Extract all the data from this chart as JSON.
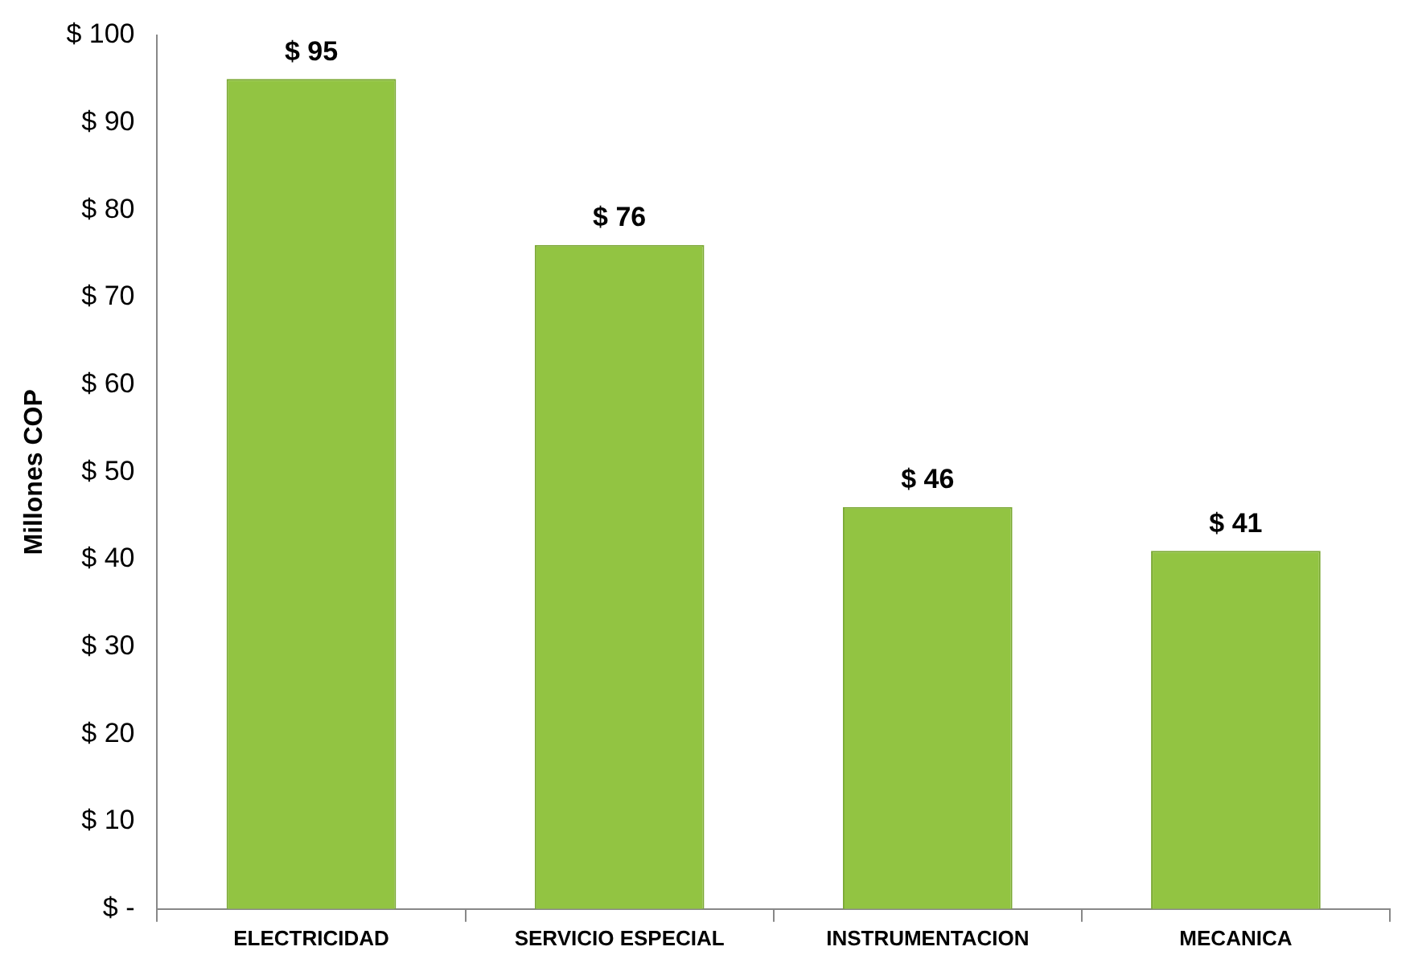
{
  "chart_data": {
    "type": "bar",
    "ylabel": "Millones COP",
    "categories": [
      "ELECTRICIDAD",
      "SERVICIO ESPECIAL",
      "INSTRUMENTACION",
      "MECANICA"
    ],
    "values": [
      95,
      76,
      46,
      41
    ],
    "value_labels": [
      "$ 95",
      "$ 76",
      "$ 46",
      "$ 41"
    ],
    "color": "#92c442",
    "ylim": [
      0,
      100
    ],
    "yticks": [
      {
        "value": 0,
        "label": "$ -"
      },
      {
        "value": 10,
        "label": "$ 10"
      },
      {
        "value": 20,
        "label": "$ 20"
      },
      {
        "value": 30,
        "label": "$ 30"
      },
      {
        "value": 40,
        "label": "$ 40"
      },
      {
        "value": 50,
        "label": "$ 50"
      },
      {
        "value": 60,
        "label": "$ 60"
      },
      {
        "value": 70,
        "label": "$ 70"
      },
      {
        "value": 80,
        "label": "$ 80"
      },
      {
        "value": 90,
        "label": "$ 90"
      },
      {
        "value": 100,
        "label": "$ 100"
      }
    ],
    "grid": false,
    "legend": false
  }
}
